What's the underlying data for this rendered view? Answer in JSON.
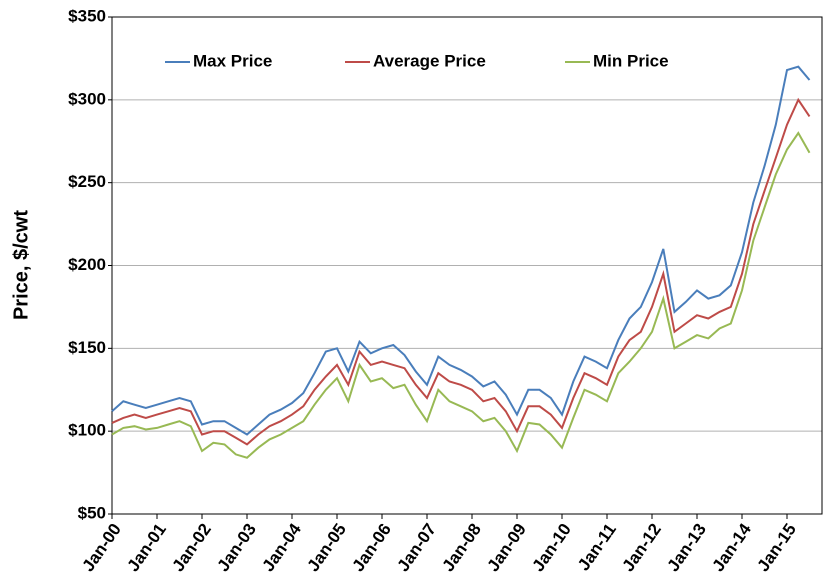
{
  "chart_data": {
    "type": "line",
    "y_label": "Price, $/cwt",
    "categories": [
      "Jan-00",
      null,
      null,
      null,
      "Jan-01",
      null,
      null,
      null,
      "Jan-02",
      null,
      null,
      null,
      "Jan-03",
      null,
      null,
      null,
      "Jan-04",
      null,
      null,
      null,
      "Jan-05",
      null,
      null,
      null,
      "Jan-06",
      null,
      null,
      null,
      "Jan-07",
      null,
      null,
      null,
      "Jan-08",
      null,
      null,
      null,
      "Jan-09",
      null,
      null,
      null,
      "Jan-10",
      null,
      null,
      null,
      "Jan-11",
      null,
      null,
      null,
      "Jan-12",
      null,
      null,
      null,
      "Jan-13",
      null,
      null,
      null,
      "Jan-14",
      null,
      null,
      null,
      "Jan-15",
      null,
      null
    ],
    "series": [
      {
        "name": "Max Price",
        "color": "#4a7ebb",
        "values": [
          112,
          118,
          116,
          114,
          116,
          118,
          120,
          118,
          104,
          106,
          106,
          102,
          98,
          104,
          110,
          113,
          117,
          123,
          135,
          148,
          150,
          136,
          154,
          147,
          150,
          152,
          146,
          136,
          128,
          145,
          140,
          137,
          133,
          127,
          130,
          122,
          110,
          125,
          125,
          120,
          110,
          130,
          145,
          142,
          138,
          155,
          168,
          175,
          190,
          210,
          172,
          178,
          185,
          180,
          182,
          188,
          208,
          238,
          260,
          285,
          318,
          320,
          312
        ]
      },
      {
        "name": "Average Price",
        "color": "#be4b48",
        "values": [
          105,
          108,
          110,
          108,
          110,
          112,
          114,
          112,
          98,
          100,
          100,
          96,
          92,
          98,
          103,
          106,
          110,
          115,
          125,
          133,
          140,
          128,
          148,
          140,
          142,
          140,
          138,
          128,
          120,
          135,
          130,
          128,
          125,
          118,
          120,
          112,
          100,
          115,
          115,
          110,
          102,
          120,
          135,
          132,
          128,
          145,
          155,
          160,
          175,
          195,
          160,
          165,
          170,
          168,
          172,
          175,
          195,
          225,
          245,
          265,
          285,
          300,
          290
        ]
      },
      {
        "name": "Min Price",
        "color": "#98b954",
        "values": [
          98,
          102,
          103,
          101,
          102,
          104,
          106,
          103,
          88,
          93,
          92,
          86,
          84,
          90,
          95,
          98,
          102,
          106,
          116,
          125,
          132,
          118,
          140,
          130,
          132,
          126,
          128,
          116,
          106,
          125,
          118,
          115,
          112,
          106,
          108,
          100,
          88,
          105,
          104,
          98,
          90,
          108,
          125,
          122,
          118,
          135,
          142,
          150,
          160,
          180,
          150,
          154,
          158,
          156,
          162,
          165,
          185,
          215,
          235,
          255,
          270,
          280,
          268
        ]
      }
    ],
    "ylim": [
      50,
      350
    ],
    "yticks": [
      {
        "value": 50,
        "label": "$50"
      },
      {
        "value": 100,
        "label": "$100"
      },
      {
        "value": 150,
        "label": "$150"
      },
      {
        "value": 200,
        "label": "$200"
      },
      {
        "value": 250,
        "label": "$250"
      },
      {
        "value": 300,
        "label": "$300"
      },
      {
        "value": 350,
        "label": "$350"
      }
    ],
    "grid": true,
    "legend": "top"
  }
}
